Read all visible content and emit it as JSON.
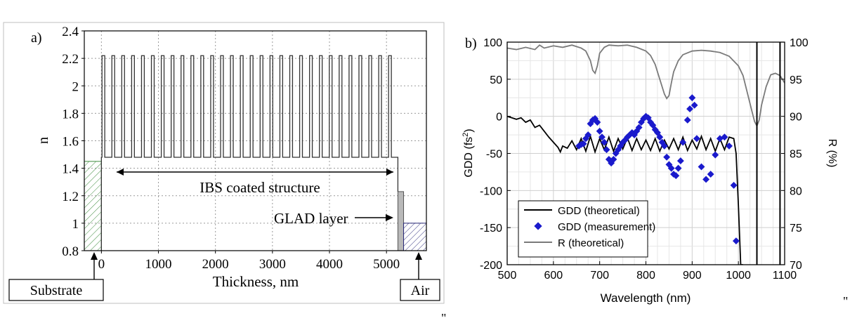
{
  "stray_marks": [
    "\"",
    "\"",
    "\""
  ],
  "chart_data": [
    {
      "type": "line",
      "panel_label": "a)",
      "xlabel": "Thickness, nm",
      "ylabel": "n",
      "xlim": [
        -300,
        5700
      ],
      "ylim": [
        0.8,
        2.4
      ],
      "xticks": [
        0,
        1000,
        2000,
        3000,
        4000,
        5000
      ],
      "yticks": [
        0.8,
        1,
        1.2,
        1.4,
        1.6,
        1.8,
        2,
        2.2,
        2.4
      ],
      "ytick_labels": [
        "0.8",
        "1",
        "1.2",
        "1.4",
        "1.6",
        "1.8",
        "2",
        "2.2",
        "2.4"
      ],
      "grid": true,
      "structure": {
        "n_high": 2.22,
        "n_low": 1.48,
        "ibs_start": 0,
        "ibs_end": 5200,
        "periods": 30,
        "substrate_n": 1.45,
        "substrate_range": [
          -300,
          0
        ],
        "glad_n": 1.23,
        "glad_range": [
          5200,
          5300
        ],
        "air_n": 1.0,
        "air_range": [
          5300,
          5700
        ]
      },
      "annotations": {
        "ibs": "IBS coated structure",
        "glad": "GLAD layer",
        "substrate": "Substrate",
        "air": "Air"
      }
    },
    {
      "type": "line",
      "panel_label": "b)",
      "xlabel": "Wavelength (nm)",
      "ylabel": "GDD (fs²)",
      "ylabel_main": "GDD (fs",
      "ylabel_sup": "2",
      "ylabel_close": ")",
      "y2label": "R (%)",
      "xlim": [
        500,
        1100
      ],
      "ylim": [
        -200,
        100
      ],
      "y2lim": [
        70,
        100
      ],
      "xticks": [
        500,
        600,
        700,
        800,
        900,
        1000,
        1100
      ],
      "yticks": [
        -200,
        -150,
        -100,
        -50,
        0,
        50,
        100
      ],
      "y2ticks": [
        70,
        75,
        80,
        85,
        90,
        95,
        100
      ],
      "grid": true,
      "legend_position": "bottom-left",
      "series": [
        {
          "name": "GDD (theoretical)",
          "color": "#000000",
          "x": [
            500,
            510,
            520,
            530,
            540,
            550,
            560,
            570,
            580,
            590,
            600,
            610,
            615,
            620,
            630,
            640,
            650,
            660,
            670,
            680,
            690,
            700,
            710,
            720,
            730,
            740,
            750,
            760,
            770,
            780,
            790,
            800,
            810,
            820,
            830,
            840,
            850,
            860,
            870,
            880,
            890,
            900,
            910,
            920,
            930,
            940,
            950,
            960,
            970,
            980,
            990,
            995,
            1000,
            1005,
            1010
          ],
          "y": [
            0,
            -2,
            -4,
            -2,
            -8,
            -5,
            -15,
            -12,
            -20,
            -28,
            -35,
            -42,
            -48,
            -40,
            -43,
            -33,
            -45,
            -30,
            -47,
            -27,
            -48,
            -30,
            -45,
            -28,
            -47,
            -30,
            -44,
            -29,
            -46,
            -30,
            -45,
            -32,
            -46,
            -30,
            -47,
            -32,
            -44,
            -30,
            -45,
            -28,
            -46,
            -32,
            -44,
            -27,
            -45,
            -30,
            -47,
            -30,
            -45,
            -28,
            -30,
            -50,
            -120,
            -200,
            -200
          ]
        },
        {
          "name": "GDD (measurement)",
          "color": "#1a1acc",
          "x": [
            655,
            660,
            665,
            670,
            675,
            680,
            685,
            690,
            695,
            700,
            705,
            710,
            715,
            720,
            725,
            730,
            735,
            740,
            745,
            750,
            755,
            760,
            765,
            770,
            775,
            780,
            785,
            790,
            795,
            800,
            805,
            810,
            815,
            820,
            825,
            830,
            835,
            840,
            845,
            850,
            855,
            860,
            865,
            870,
            875,
            880,
            890,
            895,
            900,
            905,
            910,
            920,
            930,
            940,
            950,
            960,
            970,
            980,
            990,
            995
          ],
          "y": [
            -40,
            -38,
            -37,
            -30,
            -25,
            -10,
            -5,
            -3,
            -8,
            -20,
            -28,
            -35,
            -45,
            -58,
            -63,
            -58,
            -50,
            -45,
            -40,
            -35,
            -32,
            -28,
            -25,
            -22,
            -25,
            -20,
            -15,
            -8,
            -3,
            0,
            -2,
            -8,
            -12,
            -18,
            -22,
            -28,
            -35,
            -40,
            -55,
            -65,
            -70,
            -78,
            -80,
            -70,
            -60,
            -35,
            -5,
            10,
            25,
            15,
            -30,
            -68,
            -85,
            -78,
            -52,
            -30,
            -28,
            -40,
            -93,
            -168
          ]
        },
        {
          "name": "R (theoretical)",
          "color": "#7a7a7a",
          "axis": "right",
          "x": [
            500,
            520,
            540,
            560,
            570,
            580,
            600,
            620,
            640,
            660,
            670,
            680,
            685,
            690,
            695,
            700,
            710,
            720,
            740,
            760,
            780,
            800,
            810,
            820,
            830,
            840,
            845,
            850,
            855,
            860,
            870,
            880,
            900,
            920,
            940,
            960,
            980,
            1000,
            1010,
            1020,
            1030,
            1035,
            1040,
            1045,
            1050,
            1060,
            1070,
            1080,
            1090,
            1100
          ],
          "y": [
            99.2,
            99.0,
            99.3,
            99.0,
            99.6,
            99.2,
            99.5,
            99.3,
            99.6,
            99.2,
            98.8,
            97.5,
            96.2,
            95.8,
            96.8,
            98.5,
            99.3,
            99.6,
            99.5,
            99.6,
            99.3,
            98.8,
            98.2,
            97.0,
            95.0,
            93.0,
            92.4,
            92.8,
            94.5,
            96.0,
            97.5,
            98.3,
            98.8,
            98.9,
            98.8,
            98.6,
            98.1,
            96.8,
            95.5,
            93.0,
            90.5,
            89.3,
            88.7,
            89.5,
            91.5,
            94.0,
            95.6,
            95.8,
            95.5,
            94.5
          ]
        }
      ],
      "vertical_lines": [
        1040,
        1090
      ]
    }
  ]
}
